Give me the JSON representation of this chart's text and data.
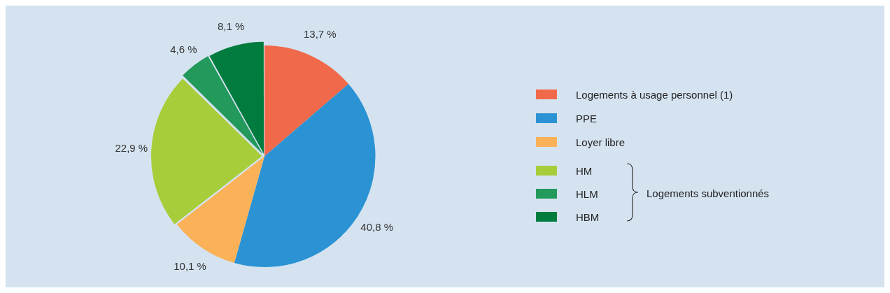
{
  "chart_data": {
    "type": "pie",
    "categories": [
      "Logements à usage personnel (1)",
      "PPE",
      "Loyer libre",
      "HM",
      "HLM",
      "HBM"
    ],
    "values": [
      13.7,
      40.8,
      10.1,
      22.9,
      4.6,
      8.1
    ],
    "value_labels": [
      "13,7 %",
      "40,8 %",
      "10,1 %",
      "22,9 %",
      "4,6 %",
      "8,1 %"
    ],
    "colors": [
      "#f0694a",
      "#2b93d3",
      "#fbb157",
      "#a8cd3a",
      "#23995c",
      "#007c3e"
    ],
    "legend": "right",
    "annotations": [
      "Logements subventionnés"
    ]
  }
}
